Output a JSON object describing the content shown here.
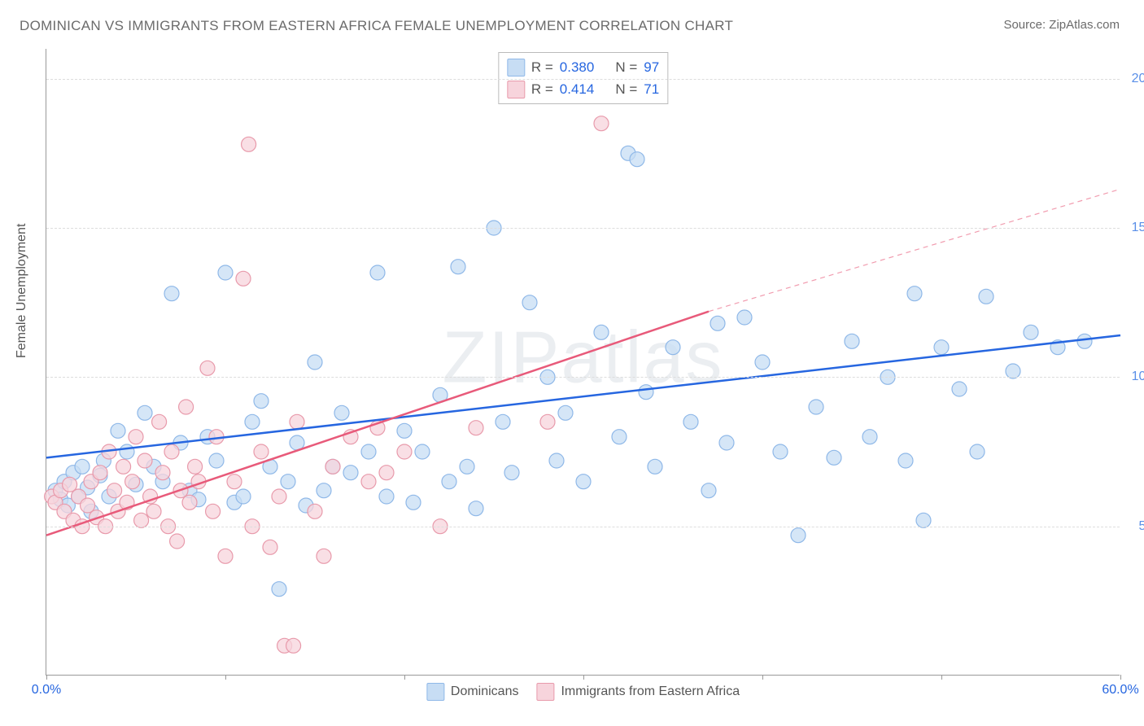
{
  "title": "DOMINICAN VS IMMIGRANTS FROM EASTERN AFRICA FEMALE UNEMPLOYMENT CORRELATION CHART",
  "source": "Source: ZipAtlas.com",
  "ylabel": "Female Unemployment",
  "watermark": "ZIPatlas",
  "chart": {
    "type": "scatter",
    "background_color": "#ffffff",
    "grid_color": "#dddddd",
    "axis_color": "#999999",
    "xlim": [
      0,
      60
    ],
    "ylim": [
      0,
      21
    ],
    "xticks": [
      {
        "pos": 0,
        "label": "0.0%",
        "color": "#2666e0"
      },
      {
        "pos": 10
      },
      {
        "pos": 20
      },
      {
        "pos": 30
      },
      {
        "pos": 40
      },
      {
        "pos": 50
      },
      {
        "pos": 60,
        "label": "60.0%",
        "color": "#2666e0"
      }
    ],
    "yticks": [
      {
        "pos": 5,
        "label": "5.0%",
        "color": "#5a8fe8"
      },
      {
        "pos": 10,
        "label": "10.0%",
        "color": "#5a8fe8"
      },
      {
        "pos": 15,
        "label": "15.0%",
        "color": "#5a8fe8"
      },
      {
        "pos": 20,
        "label": "20.0%",
        "color": "#5a8fe8"
      }
    ],
    "marker_radius": 9,
    "marker_stroke_width": 1.2,
    "line_width": 2.5,
    "dash_pattern": "6,5",
    "series": [
      {
        "name": "Dominicans",
        "fill": "#c7ddf4",
        "stroke": "#8fb8e8",
        "line_color": "#2666e0",
        "R": "0.380",
        "N": "97",
        "trend": {
          "x1": 0,
          "y1": 7.3,
          "x2": 60,
          "y2": 11.4
        },
        "points": [
          [
            0.5,
            6.2
          ],
          [
            0.8,
            5.9
          ],
          [
            1.0,
            6.5
          ],
          [
            1.2,
            5.7
          ],
          [
            1.5,
            6.8
          ],
          [
            1.8,
            6.0
          ],
          [
            2.0,
            7.0
          ],
          [
            2.3,
            6.3
          ],
          [
            2.5,
            5.5
          ],
          [
            3.0,
            6.7
          ],
          [
            3.2,
            7.2
          ],
          [
            3.5,
            6.0
          ],
          [
            4.0,
            8.2
          ],
          [
            4.5,
            7.5
          ],
          [
            5.0,
            6.4
          ],
          [
            5.5,
            8.8
          ],
          [
            6.0,
            7.0
          ],
          [
            6.5,
            6.5
          ],
          [
            7.0,
            12.8
          ],
          [
            7.5,
            7.8
          ],
          [
            8.0,
            6.2
          ],
          [
            8.5,
            5.9
          ],
          [
            9.0,
            8.0
          ],
          [
            9.5,
            7.2
          ],
          [
            10.0,
            13.5
          ],
          [
            10.5,
            5.8
          ],
          [
            11.0,
            6.0
          ],
          [
            11.5,
            8.5
          ],
          [
            12.0,
            9.2
          ],
          [
            12.5,
            7.0
          ],
          [
            13.0,
            2.9
          ],
          [
            13.5,
            6.5
          ],
          [
            14.0,
            7.8
          ],
          [
            14.5,
            5.7
          ],
          [
            15.0,
            10.5
          ],
          [
            15.5,
            6.2
          ],
          [
            16.0,
            7.0
          ],
          [
            16.5,
            8.8
          ],
          [
            17.0,
            6.8
          ],
          [
            18.0,
            7.5
          ],
          [
            18.5,
            13.5
          ],
          [
            19.0,
            6.0
          ],
          [
            20.0,
            8.2
          ],
          [
            20.5,
            5.8
          ],
          [
            21.0,
            7.5
          ],
          [
            22.0,
            9.4
          ],
          [
            22.5,
            6.5
          ],
          [
            23.0,
            13.7
          ],
          [
            23.5,
            7.0
          ],
          [
            24.0,
            5.6
          ],
          [
            25.0,
            15.0
          ],
          [
            25.5,
            8.5
          ],
          [
            26.0,
            6.8
          ],
          [
            27.0,
            12.5
          ],
          [
            28.0,
            10.0
          ],
          [
            28.5,
            7.2
          ],
          [
            29.0,
            8.8
          ],
          [
            30.0,
            6.5
          ],
          [
            31.0,
            11.5
          ],
          [
            32.0,
            8.0
          ],
          [
            32.5,
            17.5
          ],
          [
            33.0,
            17.3
          ],
          [
            33.5,
            9.5
          ],
          [
            34.0,
            7.0
          ],
          [
            35.0,
            11.0
          ],
          [
            36.0,
            8.5
          ],
          [
            37.0,
            6.2
          ],
          [
            37.5,
            11.8
          ],
          [
            38.0,
            7.8
          ],
          [
            39.0,
            12.0
          ],
          [
            40.0,
            10.5
          ],
          [
            41.0,
            7.5
          ],
          [
            42.0,
            4.7
          ],
          [
            43.0,
            9.0
          ],
          [
            44.0,
            7.3
          ],
          [
            45.0,
            11.2
          ],
          [
            46.0,
            8.0
          ],
          [
            47.0,
            10.0
          ],
          [
            48.0,
            7.2
          ],
          [
            48.5,
            12.8
          ],
          [
            49.0,
            5.2
          ],
          [
            50.0,
            11.0
          ],
          [
            51.0,
            9.6
          ],
          [
            52.0,
            7.5
          ],
          [
            52.5,
            12.7
          ],
          [
            54.0,
            10.2
          ],
          [
            55.0,
            11.5
          ],
          [
            56.5,
            11.0
          ],
          [
            58.0,
            11.2
          ]
        ]
      },
      {
        "name": "Immigrants from Eastern Africa",
        "fill": "#f7d4dc",
        "stroke": "#e89aab",
        "line_color": "#e85a7a",
        "R": "0.414",
        "N": "71",
        "trend": {
          "x1": 0,
          "y1": 4.7,
          "x2": 37,
          "y2": 12.2
        },
        "trend_dash": {
          "x1": 37,
          "y1": 12.2,
          "x2": 60,
          "y2": 16.3
        },
        "points": [
          [
            0.3,
            6.0
          ],
          [
            0.5,
            5.8
          ],
          [
            0.8,
            6.2
          ],
          [
            1.0,
            5.5
          ],
          [
            1.3,
            6.4
          ],
          [
            1.5,
            5.2
          ],
          [
            1.8,
            6.0
          ],
          [
            2.0,
            5.0
          ],
          [
            2.3,
            5.7
          ],
          [
            2.5,
            6.5
          ],
          [
            2.8,
            5.3
          ],
          [
            3.0,
            6.8
          ],
          [
            3.3,
            5.0
          ],
          [
            3.5,
            7.5
          ],
          [
            3.8,
            6.2
          ],
          [
            4.0,
            5.5
          ],
          [
            4.3,
            7.0
          ],
          [
            4.5,
            5.8
          ],
          [
            4.8,
            6.5
          ],
          [
            5.0,
            8.0
          ],
          [
            5.3,
            5.2
          ],
          [
            5.5,
            7.2
          ],
          [
            5.8,
            6.0
          ],
          [
            6.0,
            5.5
          ],
          [
            6.3,
            8.5
          ],
          [
            6.5,
            6.8
          ],
          [
            6.8,
            5.0
          ],
          [
            7.0,
            7.5
          ],
          [
            7.3,
            4.5
          ],
          [
            7.5,
            6.2
          ],
          [
            7.8,
            9.0
          ],
          [
            8.0,
            5.8
          ],
          [
            8.3,
            7.0
          ],
          [
            8.5,
            6.5
          ],
          [
            9.0,
            10.3
          ],
          [
            9.3,
            5.5
          ],
          [
            9.5,
            8.0
          ],
          [
            10.0,
            4.0
          ],
          [
            10.5,
            6.5
          ],
          [
            11.0,
            13.3
          ],
          [
            11.3,
            17.8
          ],
          [
            11.5,
            5.0
          ],
          [
            12.0,
            7.5
          ],
          [
            12.5,
            4.3
          ],
          [
            13.0,
            6.0
          ],
          [
            13.3,
            1.0
          ],
          [
            13.8,
            1.0
          ],
          [
            14.0,
            8.5
          ],
          [
            15.0,
            5.5
          ],
          [
            15.5,
            4.0
          ],
          [
            16.0,
            7.0
          ],
          [
            17.0,
            8.0
          ],
          [
            18.0,
            6.5
          ],
          [
            18.5,
            8.3
          ],
          [
            19.0,
            6.8
          ],
          [
            20.0,
            7.5
          ],
          [
            22.0,
            5.0
          ],
          [
            24.0,
            8.3
          ],
          [
            28.0,
            8.5
          ],
          [
            31.0,
            18.5
          ]
        ]
      }
    ]
  },
  "legend_labels": {
    "series1": "Dominicans",
    "series2": "Immigrants from Eastern Africa"
  },
  "stats_labels": {
    "R": "R =",
    "N": "N ="
  }
}
